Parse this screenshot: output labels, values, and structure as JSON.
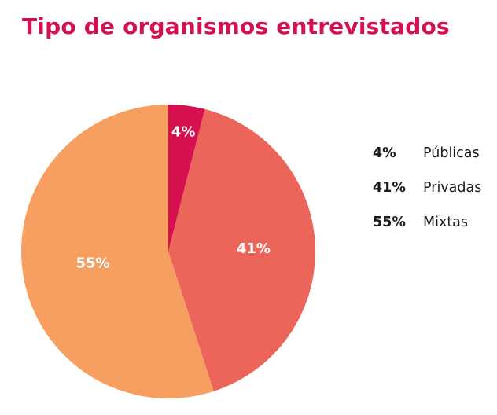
{
  "colors": {
    "title": "#d4114f"
  },
  "chart_data": {
    "type": "pie",
    "title": "Tipo de organismos entrevistados",
    "slices": [
      {
        "label": "Públicas",
        "value": 4,
        "value_label": "4%",
        "color": "#d6104e"
      },
      {
        "label": "Privadas",
        "value": 41,
        "value_label": "41%",
        "color": "#ec655b"
      },
      {
        "label": "Mixtas",
        "value": 55,
        "value_label": "55%",
        "color": "#f79f61"
      }
    ],
    "legend_position": "right"
  }
}
